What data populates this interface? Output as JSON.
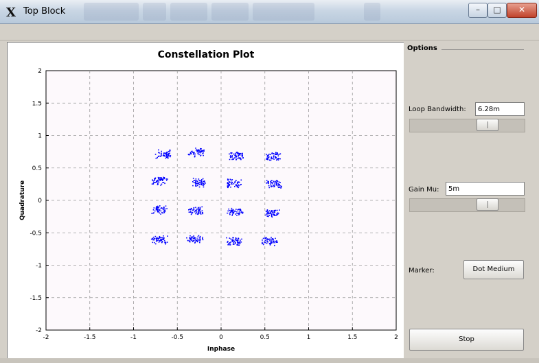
{
  "window": {
    "title": "Top Block",
    "app_icon": "x-logo-icon"
  },
  "chart_data": {
    "type": "scatter",
    "title": "Constellation Plot",
    "xlabel": "Inphase",
    "ylabel": "Quadrature",
    "xlim": [
      -2,
      2
    ],
    "ylim": [
      -2,
      2
    ],
    "grid": true,
    "xticks": [
      "-2",
      "-1.5",
      "-1",
      "-0.5",
      "0",
      "0.5",
      "1",
      "1.5",
      "2"
    ],
    "yticks": [
      "2",
      "1.5",
      "1",
      "0.5",
      "0",
      "-0.5",
      "-1",
      "-1.5",
      "-2"
    ],
    "marker_color": "#0000ff",
    "clusters": [
      [
        -0.66,
        0.71
      ],
      [
        -0.28,
        0.74
      ],
      [
        0.18,
        0.68
      ],
      [
        0.6,
        0.68
      ],
      [
        -0.7,
        0.3
      ],
      [
        -0.26,
        0.27
      ],
      [
        0.14,
        0.26
      ],
      [
        0.6,
        0.25
      ],
      [
        -0.7,
        -0.15
      ],
      [
        -0.28,
        -0.16
      ],
      [
        0.16,
        -0.18
      ],
      [
        0.58,
        -0.19
      ],
      [
        -0.7,
        -0.61
      ],
      [
        -0.3,
        -0.6
      ],
      [
        0.15,
        -0.63
      ],
      [
        0.55,
        -0.63
      ]
    ]
  },
  "options": {
    "title": "Options",
    "loop_bandwidth": {
      "label": "Loop Bandwidth:",
      "value": "6.28m",
      "slider_fraction": 0.72
    },
    "gain_mu": {
      "label": "Gain Mu:",
      "value": "5m",
      "slider_fraction": 0.72
    },
    "marker": {
      "label": "Marker:",
      "value": "Dot Medium"
    },
    "stop_label": "Stop"
  }
}
